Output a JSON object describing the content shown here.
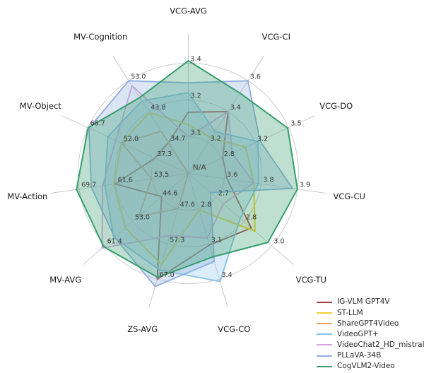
{
  "figure_title": "",
  "center_label": "N/A",
  "chart_data": {
    "type": "radar",
    "grid": true,
    "legend_position": "lower right",
    "center_label": "N/A",
    "axes": [
      {
        "label": "VCG-AVG",
        "min": 2.95,
        "ticks": [
          "3.1",
          "3.2",
          "3.4"
        ],
        "max_tick": 3.4
      },
      {
        "label": "VCG-CI",
        "min": 3.0,
        "ticks": [
          "3.2",
          "3.4",
          "3.6"
        ],
        "max_tick": 3.6
      },
      {
        "label": "VCG-DO",
        "min": 2.45,
        "ticks": [
          "2.8",
          "3.2",
          "3.5"
        ],
        "max_tick": 3.5
      },
      {
        "label": "VCG-CU",
        "min": 3.45,
        "ticks": [
          "3.6",
          "3.8",
          "3.9"
        ],
        "max_tick": 3.9
      },
      {
        "label": "VCG-TU",
        "min": 2.55,
        "ticks": [
          "2.7",
          "2.8",
          "3.0"
        ],
        "max_tick": 3.0
      },
      {
        "label": "VCG-CO",
        "min": 2.5,
        "ticks": [
          "2.8",
          "3.1",
          "3.4"
        ],
        "max_tick": 3.4
      },
      {
        "label": "ZS-AVG",
        "min": 37.9,
        "ticks": [
          "47.6",
          "57.3",
          "67.0"
        ],
        "max_tick": 67.0
      },
      {
        "label": "MV-AVG",
        "min": 36.2,
        "ticks": [
          "44.6",
          "53.0",
          "61.4"
        ],
        "max_tick": 61.4
      },
      {
        "label": "MV-Action",
        "min": 45.4,
        "ticks": [
          "53.5",
          "61.6",
          "69.7"
        ],
        "max_tick": 69.7
      },
      {
        "label": "MV-Object",
        "min": 22.6,
        "ticks": [
          "37.3",
          "52.0",
          "66.7"
        ],
        "max_tick": 66.7
      },
      {
        "label": "MV-Cognition",
        "min": 25.55,
        "ticks": [
          "34.7",
          "43.8",
          "53.0"
        ],
        "max_tick": 53.0
      }
    ],
    "series": [
      {
        "name": "IG-VLM GPT4V",
        "color": "#a8423c",
        "fill_opacity": 0.05,
        "line_width": 1.8,
        "values": [
          3.2,
          3.4,
          2.81,
          3.61,
          2.89,
          3.11,
          67.0,
          44.3,
          61.7,
          37.3,
          34.7
        ]
      },
      {
        "name": "ST-LLM",
        "color": "#f2d331",
        "fill_opacity": 0.05,
        "line_width": 2.2,
        "values": [
          3.15,
          3.23,
          3.05,
          3.72,
          2.91,
          2.81,
          63.0,
          55.2,
          62.0,
          52.0,
          43.5
        ]
      },
      {
        "name": "ShareGPT4Video",
        "color": "#e8a35f",
        "fill_opacity": 0.05,
        "line_width": 1.8,
        "values": [
          null,
          null,
          null,
          null,
          null,
          null,
          47.6,
          51.2,
          53.6,
          52.0,
          38.0
        ]
      },
      {
        "name": "VideoGPT+",
        "color": "#85c3e8",
        "fill_opacity": 0.3,
        "line_width": 1.8,
        "values": [
          3.28,
          3.27,
          3.18,
          3.74,
          2.83,
          3.42,
          64.5,
          58.7,
          64.0,
          58.0,
          47.0
        ]
      },
      {
        "name": "VideoChat2_HD_mistral",
        "color": "#d2a6d8",
        "fill_opacity": 0.1,
        "line_width": 1.8,
        "values": [
          3.1,
          3.4,
          2.91,
          3.72,
          2.74,
          3.05,
          55.0,
          62.3,
          64.5,
          54.5,
          51.5
        ]
      },
      {
        "name": "PLLaVA-34B",
        "color": "#90aede",
        "fill_opacity": 0.32,
        "line_width": 1.8,
        "values": [
          3.32,
          3.6,
          3.2,
          3.88,
          2.67,
          3.25,
          69.0,
          58.5,
          67.0,
          66.3,
          53.0
        ]
      },
      {
        "name": "CogVLM2-Video",
        "color": "#379e6d",
        "fill_opacity": 0.32,
        "line_width": 2.0,
        "values": [
          3.41,
          3.52,
          3.49,
          3.9,
          2.98,
          3.21,
          66.5,
          61.8,
          70.3,
          66.7,
          48.0
        ]
      }
    ],
    "style": {
      "grid_color": "#c9c9c9",
      "spoke_color": "#c9c9c9",
      "leader_color": "#bdbdbd",
      "tick_color": "#3a3a3a",
      "label_color": "#1a1a1a",
      "center_label_color": "#4a4a4a"
    }
  }
}
